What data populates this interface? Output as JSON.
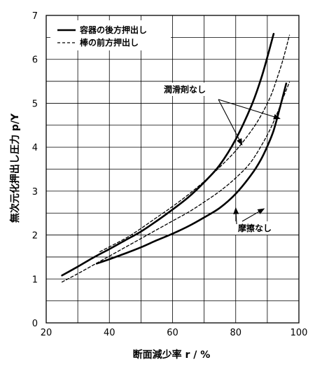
{
  "chart_data": {
    "type": "line",
    "xlabel": "断面減少率 r / %",
    "ylabel": "無次元化押出し圧力 p/Y",
    "xlim": [
      20,
      100
    ],
    "ylim": [
      0,
      7
    ],
    "x_ticks": [
      20,
      40,
      60,
      80,
      100
    ],
    "y_ticks": [
      0,
      1,
      2,
      3,
      4,
      5,
      6,
      7
    ],
    "grid": true,
    "legend_position": "top-left",
    "legend": [
      {
        "label": "容器の後方押出し",
        "style": "solid"
      },
      {
        "label": "棒の前方押出し",
        "style": "dashed"
      }
    ],
    "series": [
      {
        "name": "容器の後方押出し",
        "condition": "潤滑剤なし",
        "style": "solid",
        "x": [
          25,
          30,
          35,
          40,
          45,
          50,
          55,
          60,
          65,
          70,
          75,
          80,
          85,
          88,
          90,
          92
        ],
        "y": [
          1.08,
          1.28,
          1.49,
          1.68,
          1.88,
          2.08,
          2.32,
          2.58,
          2.86,
          3.2,
          3.6,
          4.18,
          4.95,
          5.55,
          6.05,
          6.58
        ]
      },
      {
        "name": "容器の後方押出し",
        "condition": "摩擦なし",
        "style": "solid",
        "x": [
          36,
          40,
          45,
          50,
          55,
          60,
          65,
          70,
          75,
          80,
          85,
          88,
          90,
          92,
          94,
          96
        ],
        "y": [
          1.35,
          1.45,
          1.58,
          1.72,
          1.88,
          2.03,
          2.2,
          2.4,
          2.62,
          2.94,
          3.38,
          3.72,
          4.02,
          4.38,
          4.9,
          5.45
        ]
      },
      {
        "name": "棒の前方押出し",
        "condition": "潤滑剤なし",
        "style": "dashed",
        "x": [
          37,
          45,
          50,
          55,
          60,
          65,
          70,
          75,
          80,
          85,
          88,
          91,
          93,
          95,
          97
        ],
        "y": [
          1.62,
          1.92,
          2.15,
          2.4,
          2.65,
          2.92,
          3.22,
          3.55,
          3.92,
          4.38,
          4.72,
          5.15,
          5.55,
          6.0,
          6.55
        ]
      },
      {
        "name": "棒の前方押出し",
        "condition": "摩擦なし",
        "style": "dashed",
        "x": [
          25,
          30,
          35,
          40,
          45,
          50,
          55,
          60,
          65,
          70,
          75,
          80,
          85,
          90,
          93,
          95,
          97
        ],
        "y": [
          0.93,
          1.12,
          1.32,
          1.52,
          1.72,
          1.92,
          2.12,
          2.32,
          2.52,
          2.75,
          3.0,
          3.3,
          3.68,
          4.28,
          4.75,
          5.12,
          5.48
        ]
      }
    ],
    "annotations": [
      {
        "text": "潤滑剤なし",
        "arrow_targets": [
          [
            82,
            4.05
          ],
          [
            94,
            4.65
          ]
        ]
      },
      {
        "text": "摩擦なし",
        "arrow_targets": [
          [
            80,
            2.62
          ],
          [
            89,
            2.6
          ]
        ]
      }
    ]
  }
}
